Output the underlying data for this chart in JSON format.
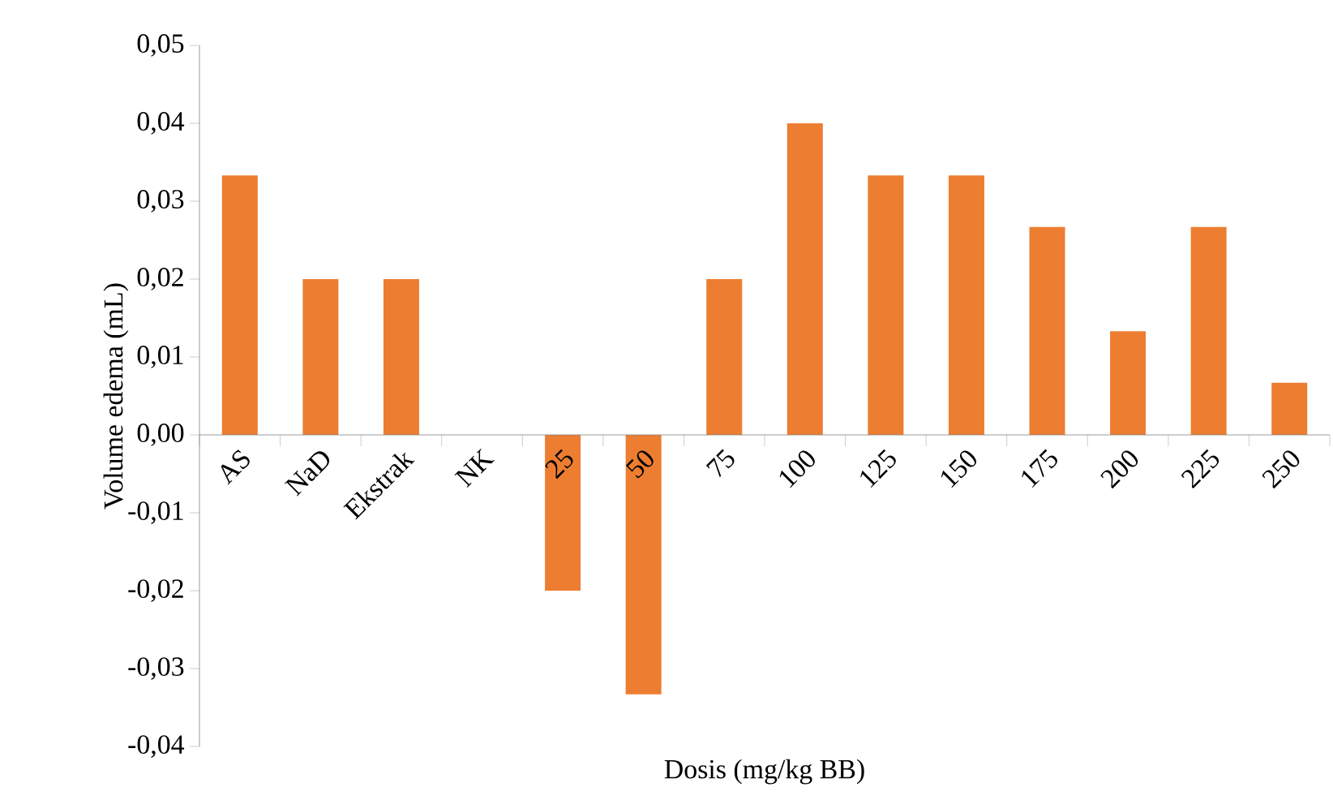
{
  "chart_data": {
    "type": "bar",
    "xlabel": "Dosis (mg/kg BB)",
    "ylabel": "Volume edema (mL)",
    "categories": [
      "AS",
      "NaD",
      "Ekstrak",
      "NK",
      "25",
      "50",
      "75",
      "100",
      "125",
      "150",
      "175",
      "200",
      "225",
      "250"
    ],
    "values": [
      0.0333,
      0.02,
      0.02,
      0,
      -0.02,
      -0.0333,
      0.02,
      0.04,
      0.0333,
      0.0333,
      0.0267,
      0.0133,
      0.0267,
      0.0067
    ],
    "color": "#ed7d31",
    "ylim": [
      -0.04,
      0.05
    ],
    "yticks": [
      {
        "value": -0.04,
        "label": "-0,04"
      },
      {
        "value": -0.03,
        "label": "-0,03"
      },
      {
        "value": -0.02,
        "label": "-0,02"
      },
      {
        "value": -0.01,
        "label": "-0,01"
      },
      {
        "value": 0,
        "label": "0,00"
      },
      {
        "value": 0.01,
        "label": "0,01"
      },
      {
        "value": 0.02,
        "label": "0,02"
      },
      {
        "value": 0.03,
        "label": "0,03"
      },
      {
        "value": 0.04,
        "label": "0,04"
      },
      {
        "value": 0.05,
        "label": "0,05"
      }
    ]
  }
}
